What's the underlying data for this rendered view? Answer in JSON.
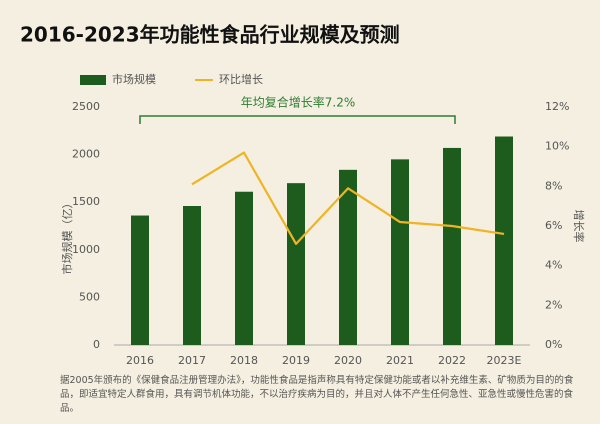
{
  "chart_data": {
    "type": "bar",
    "title": "2016-2023年功能性食品行业规模及预测",
    "categories": [
      "2016",
      "2017",
      "2018",
      "2019",
      "2020",
      "2021",
      "2022",
      "2023E"
    ],
    "series": [
      {
        "name": "市场规模",
        "color": "#1e5c1e",
        "type": "bar",
        "values": [
          1360,
          1460,
          1610,
          1700,
          1840,
          1950,
          2070,
          2190
        ]
      },
      {
        "name": "环比增长",
        "color": "#f0b323",
        "type": "line",
        "axis": "y2",
        "values": [
          null,
          8.1,
          9.7,
          5.1,
          7.9,
          6.2,
          6.0,
          5.6
        ]
      }
    ],
    "ylabel": "市场规模（亿）",
    "y2label": "增长率",
    "ylim": [
      0,
      2500
    ],
    "yticks": [
      0,
      500,
      1000,
      1500,
      2000,
      2500
    ],
    "y2lim": [
      0,
      12
    ],
    "y2ticks": [
      {
        "value": 0,
        "label": "0%"
      },
      {
        "value": 2,
        "label": "2%"
      },
      {
        "value": 4,
        "label": "4%"
      },
      {
        "value": 6,
        "label": "6%"
      },
      {
        "value": 8,
        "label": "8%"
      },
      {
        "value": 10,
        "label": "10%"
      },
      {
        "value": 12,
        "label": "12%"
      }
    ],
    "annotation": "年均复合增长率7.2%",
    "note": "据2005年颁布的《保健食品注册管理办法》，功能性食品是指声称具有特定保健功能或者以补充维生素、矿物质为目的的食品，即适宜特定人群食用，具有调节机体功能，不以治疗疾病为目的，并且对人体不产生任何急性、亚急性或慢性危害的食品。",
    "grid": false
  }
}
